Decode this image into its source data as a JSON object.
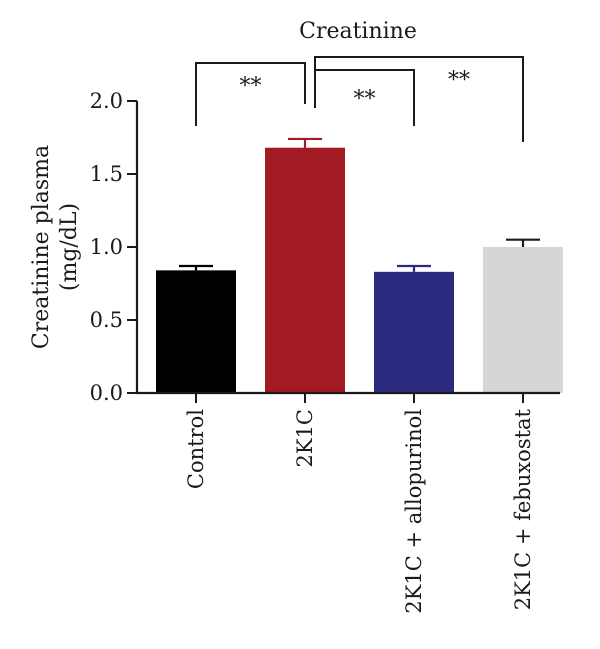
{
  "chart_data": {
    "type": "bar",
    "title": "Creatinine",
    "ylabel_line1": "Creatinine plasma",
    "ylabel_line2": "(mg/dL)",
    "xlabel": "",
    "ylim": [
      0,
      2.0
    ],
    "yticks": [
      0.0,
      0.5,
      1.0,
      1.5,
      2.0
    ],
    "ytick_labels": [
      "0.0",
      "0.5",
      "1.0",
      "1.5",
      "2.0"
    ],
    "categories": [
      "Control",
      "2K1C",
      "2K1C + allopurinol",
      "2K1C + febuxostat"
    ],
    "values": [
      0.84,
      1.68,
      0.83,
      1.0
    ],
    "errors": [
      0.03,
      0.06,
      0.04,
      0.05
    ],
    "colors": [
      "#000000",
      "#a31b22",
      "#2b2a7e",
      "#d6d6d6"
    ],
    "grid": false,
    "legend": "none",
    "significance": [
      {
        "from": 0,
        "to": 1,
        "label": "**"
      },
      {
        "from": 1,
        "to": 2,
        "label": "**"
      },
      {
        "from": 1,
        "to": 3,
        "label": "**"
      }
    ]
  }
}
